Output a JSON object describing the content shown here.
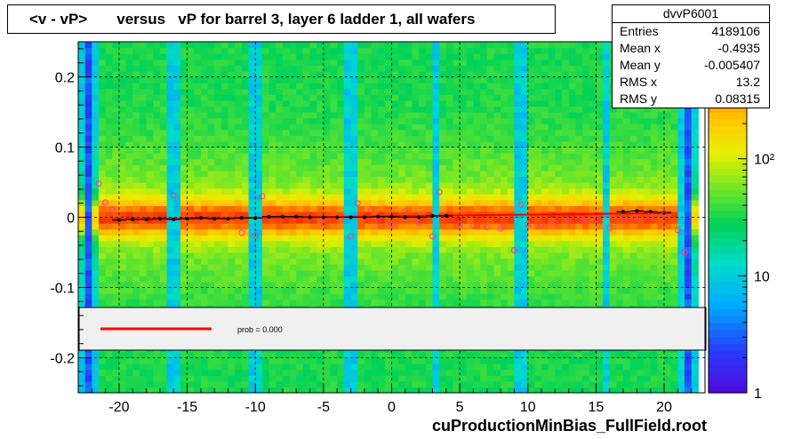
{
  "title": "<v - vP>       versus   vP for barrel 3, layer 6 ladder 1, all wafers",
  "footer": "cuProductionMinBias_FullField.root",
  "stats": {
    "name": "dvvP6001",
    "rows": [
      {
        "label": "Entries",
        "value": "4189106"
      },
      {
        "label": "Mean x",
        "value": "-0.4935"
      },
      {
        "label": "Mean y",
        "value": "-0.005407"
      },
      {
        "label": "RMS x",
        "value": "13.2"
      },
      {
        "label": "RMS y",
        "value": "0.08315"
      }
    ]
  },
  "legend": {
    "fit_label": "prob = 0.000",
    "fit_color": "#ff0000"
  },
  "chart_data": {
    "type": "heatmap",
    "x_range": [
      -23,
      23
    ],
    "y_range": [
      -0.25,
      0.25
    ],
    "x_ticks": [
      -20,
      -15,
      -10,
      -5,
      0,
      5,
      10,
      15,
      20
    ],
    "x_tick_labels": [
      "-20",
      "-15",
      "-10",
      "-5",
      "0",
      "5",
      "10",
      "15",
      "20"
    ],
    "y_ticks": [
      -0.2,
      -0.1,
      0,
      0.1,
      0.2
    ],
    "y_tick_labels": [
      "-0.2",
      "-0.1",
      "0",
      "0.1",
      "0.2"
    ],
    "z_log": true,
    "z_range": [
      1,
      1000
    ],
    "z_tick_labels": [
      {
        "z": 1,
        "label": "1"
      },
      {
        "z": 10,
        "label": "10"
      },
      {
        "z": 100,
        "label": "10²"
      }
    ],
    "grid": true,
    "fit_line": {
      "x": [
        -20.5,
        20.5
      ],
      "y": [
        -0.003,
        0.006
      ],
      "color": "#ff0000"
    },
    "profile_black": {
      "x": [
        -20,
        -19,
        -18,
        -17,
        -16,
        -15,
        -14,
        -13,
        -12,
        -11,
        -10,
        -9,
        -8,
        -7,
        -6,
        -5,
        -4,
        -3,
        -2,
        -1,
        0,
        1,
        2,
        3,
        4,
        17,
        18,
        19,
        20
      ],
      "y": [
        -0.004,
        -0.003,
        -0.003,
        -0.002,
        -0.003,
        -0.002,
        -0.001,
        -0.002,
        -0.002,
        -0.001,
        -0.001,
        0.001,
        0.001,
        0.001,
        0.0,
        0.0,
        0.0,
        0.0,
        0.0,
        0.001,
        0.001,
        0.0,
        0.0,
        0.002,
        0.002,
        0.008,
        0.009,
        0.008,
        0.007
      ]
    },
    "profile_pink": {
      "x": [
        -21.5,
        -21,
        -20.5,
        -16,
        -11,
        -10,
        -9.5,
        -5,
        -3,
        -2.5,
        -1.5,
        -1,
        0,
        1,
        2,
        3,
        3.5,
        5,
        6,
        7,
        8,
        9,
        9.5,
        10,
        11,
        12,
        13,
        14,
        15,
        16,
        17,
        18,
        19,
        20,
        21,
        21.5
      ],
      "y": [
        0.048,
        0.021,
        0.011,
        0.031,
        -0.022,
        -0.026,
        0.03,
        -0.008,
        -0.027,
        0.02,
        0.011,
        -0.006,
        -0.01,
        0.008,
        -0.008,
        -0.027,
        0.036,
        -0.01,
        -0.012,
        -0.014,
        -0.016,
        -0.047,
        0.018,
        -0.01,
        -0.01,
        -0.008,
        -0.006,
        -0.004,
        -0.003,
        -0.015,
        -0.005,
        0.0,
        0.002,
        0.004,
        -0.018,
        -0.05
      ]
    }
  }
}
